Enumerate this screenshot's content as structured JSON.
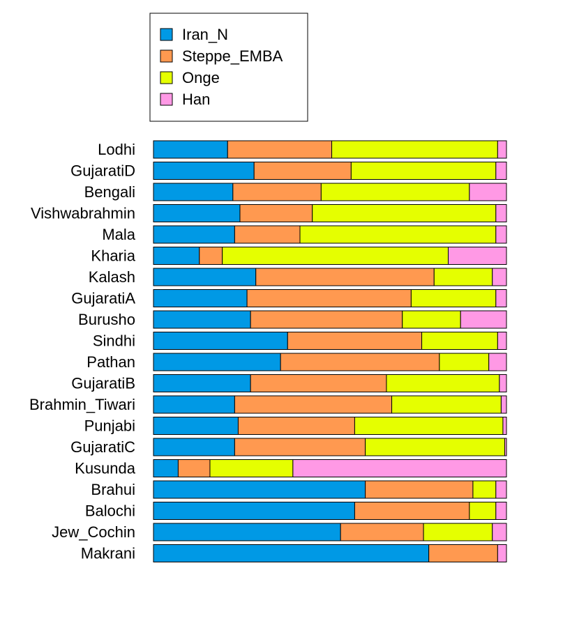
{
  "chart_data": {
    "type": "bar",
    "orientation": "horizontal",
    "stacked": true,
    "title": "",
    "xlabel": "",
    "ylabel": "",
    "xlim": [
      0,
      1
    ],
    "legend_position": "top",
    "categories": [
      "Lodhi",
      "GujaratiD",
      "Bengali",
      "Vishwabrahmin",
      "Mala",
      "Kharia",
      "Kalash",
      "GujaratiA",
      "Burusho",
      "Sindhi",
      "Pathan",
      "GujaratiB",
      "Brahmin_Tiwari",
      "Punjabi",
      "GujaratiC",
      "Kusunda",
      "Brahui",
      "Balochi",
      "Jew_Cochin",
      "Makrani"
    ],
    "series": [
      {
        "name": "Iran_N",
        "color": "#0099e5",
        "values": [
          0.21,
          0.285,
          0.225,
          0.245,
          0.23,
          0.13,
          0.29,
          0.265,
          0.275,
          0.38,
          0.36,
          0.275,
          0.23,
          0.24,
          0.23,
          0.07,
          0.6,
          0.57,
          0.53,
          0.78
        ]
      },
      {
        "name": "Steppe_EMBA",
        "color": "#ff9950",
        "values": [
          0.295,
          0.275,
          0.25,
          0.205,
          0.185,
          0.065,
          0.505,
          0.465,
          0.43,
          0.38,
          0.45,
          0.385,
          0.445,
          0.33,
          0.37,
          0.09,
          0.305,
          0.325,
          0.235,
          0.195
        ]
      },
      {
        "name": "Onge",
        "color": "#e5ff00",
        "values": [
          0.47,
          0.41,
          0.42,
          0.52,
          0.555,
          0.64,
          0.165,
          0.24,
          0.165,
          0.215,
          0.14,
          0.32,
          0.31,
          0.42,
          0.395,
          0.235,
          0.065,
          0.075,
          0.195,
          0.0
        ]
      },
      {
        "name": "Han",
        "color": "#ff99e5",
        "values": [
          0.025,
          0.03,
          0.105,
          0.03,
          0.03,
          0.165,
          0.04,
          0.03,
          0.13,
          0.025,
          0.05,
          0.02,
          0.015,
          0.01,
          0.005,
          0.605,
          0.03,
          0.03,
          0.04,
          0.025
        ]
      }
    ]
  }
}
